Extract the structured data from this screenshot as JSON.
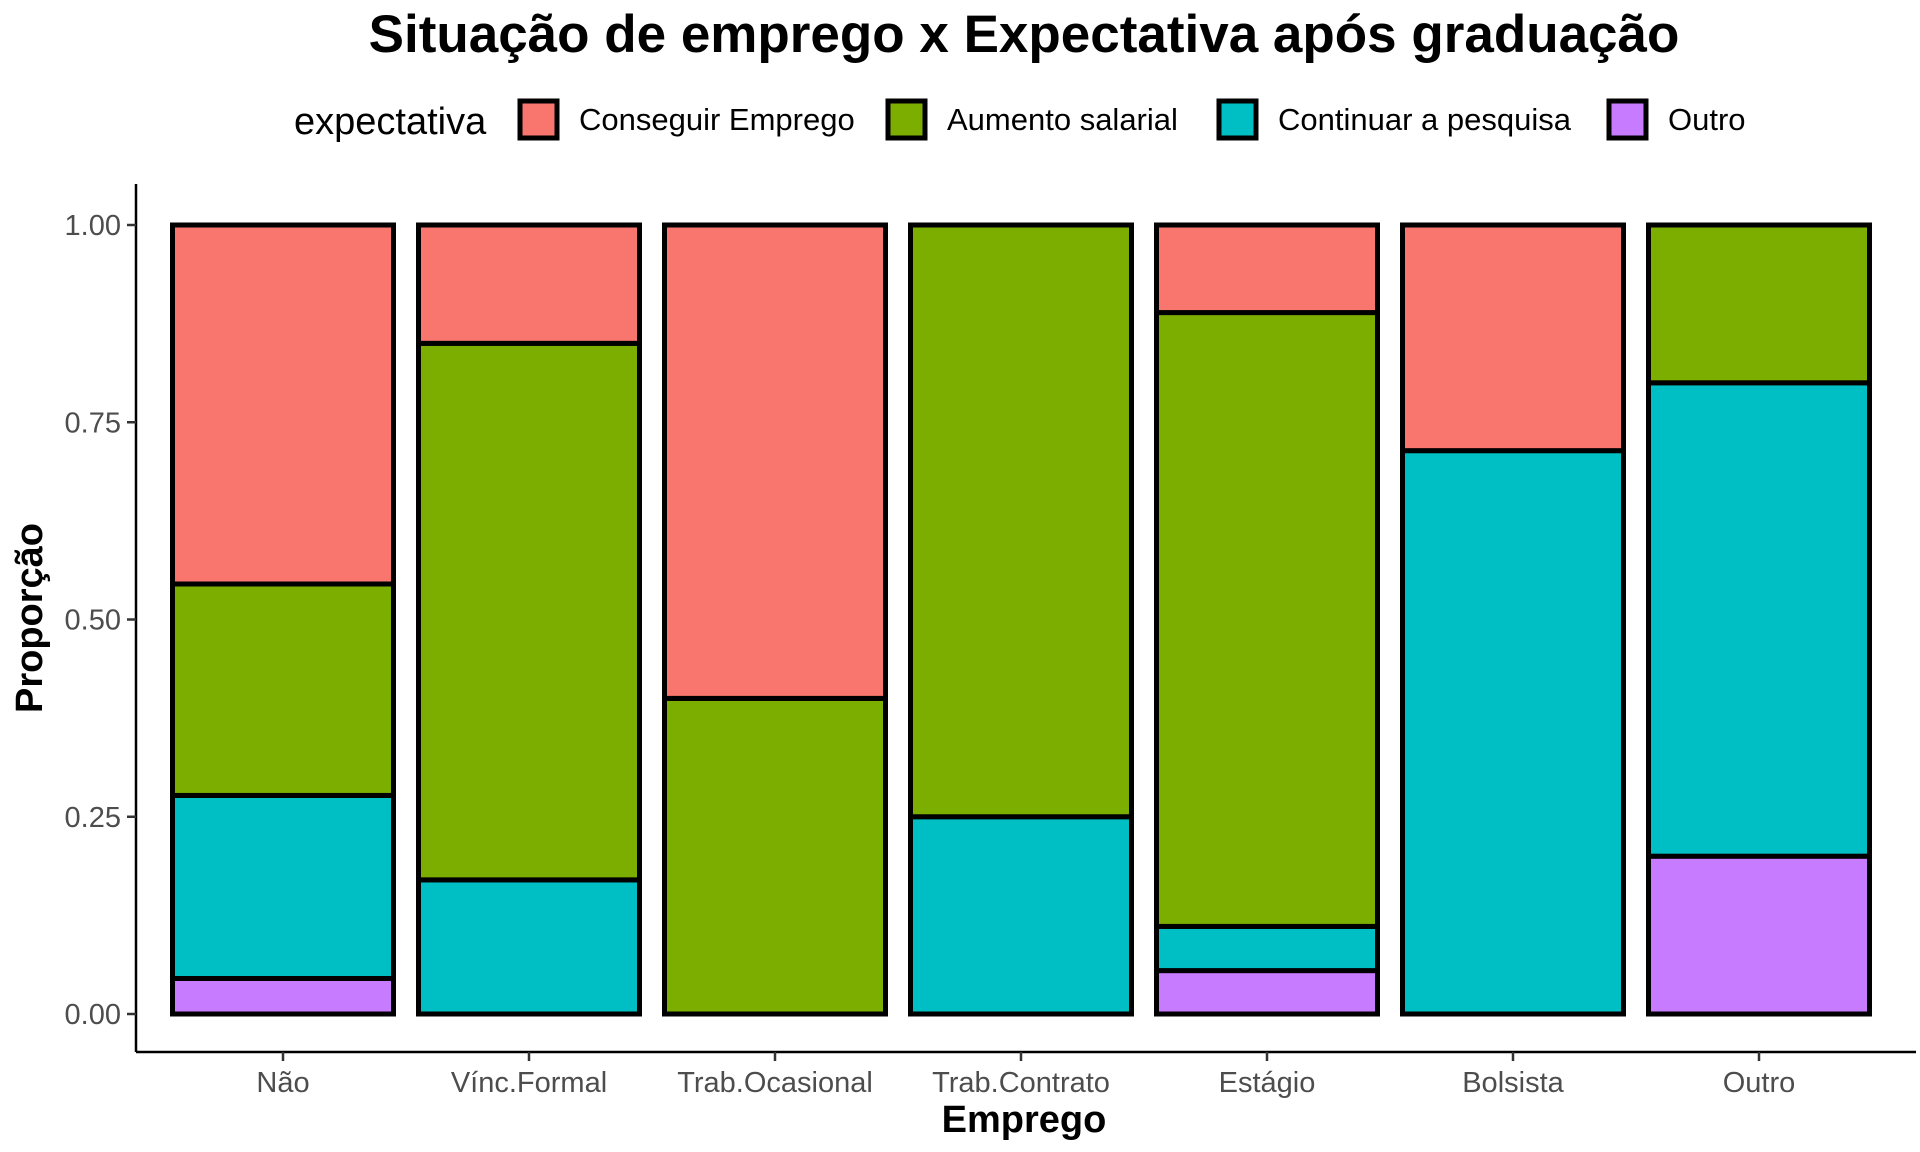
{
  "chart_data": {
    "type": "bar",
    "stacked": true,
    "title": "Situação de emprego x Expectativa após graduação",
    "xlabel": "Emprego",
    "ylabel": "Proporção",
    "ylim": [
      0,
      1
    ],
    "yticks": [
      "0.00",
      "0.25",
      "0.50",
      "0.75",
      "1.00"
    ],
    "ytick_values": [
      0,
      0.25,
      0.5,
      0.75,
      1
    ],
    "categories": [
      "Não",
      "Vínc.Formal",
      "Trab.Ocasional",
      "Trab.Contrato",
      "Estágio",
      "Bolsista",
      "Outro"
    ],
    "legend": {
      "title": "expectativa",
      "position": "top"
    },
    "series": [
      {
        "name": "Conseguir Emprego",
        "color": "#F8766D",
        "values": [
          0.455,
          0.15,
          0.6,
          0.0,
          0.111,
          0.286,
          0.0
        ]
      },
      {
        "name": "Aumento salarial",
        "color": "#7CAE00",
        "values": [
          0.268,
          0.68,
          0.4,
          0.75,
          0.778,
          0.0,
          0.2
        ]
      },
      {
        "name": "Continuar a pesquisa",
        "color": "#00BFC4",
        "values": [
          0.232,
          0.17,
          0.0,
          0.25,
          0.056,
          0.714,
          0.6
        ]
      },
      {
        "name": "Outro",
        "color": "#C77CFF",
        "values": [
          0.045,
          0.0,
          0.0,
          0.0,
          0.055,
          0.0,
          0.2
        ]
      }
    ]
  }
}
